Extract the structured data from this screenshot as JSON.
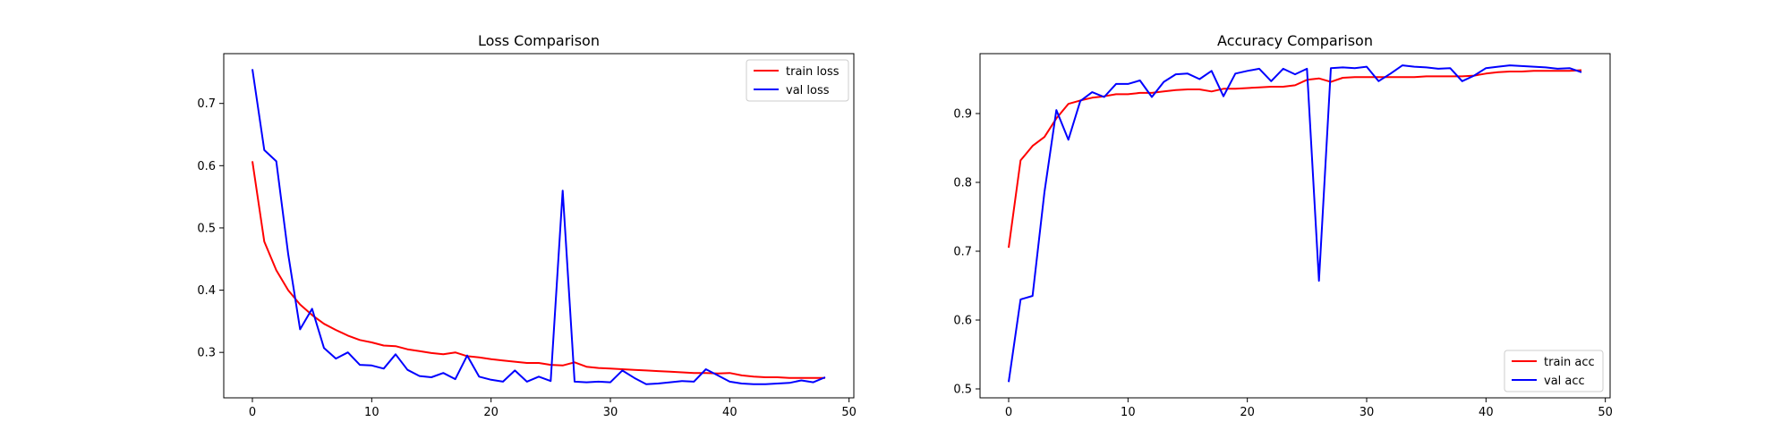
{
  "chart_data": [
    {
      "type": "line",
      "title": "Loss Comparison",
      "xlabel": "",
      "ylabel": "",
      "xlim": [
        -2.4,
        50.4
      ],
      "ylim": [
        0.227,
        0.78
      ],
      "xticks": [
        0,
        10,
        20,
        30,
        40,
        50
      ],
      "yticks": [
        0.3,
        0.4,
        0.5,
        0.6,
        0.7
      ],
      "xtick_labels": [
        "0",
        "10",
        "20",
        "30",
        "40",
        "50"
      ],
      "ytick_labels": [
        "0.3",
        "0.4",
        "0.5",
        "0.6",
        "0.7"
      ],
      "grid": false,
      "legend_position": "top-right",
      "x": [
        0,
        1,
        2,
        3,
        4,
        5,
        6,
        7,
        8,
        9,
        10,
        11,
        12,
        13,
        14,
        15,
        16,
        17,
        18,
        19,
        20,
        21,
        22,
        23,
        24,
        25,
        26,
        27,
        28,
        29,
        30,
        31,
        32,
        33,
        34,
        35,
        36,
        37,
        38,
        39,
        40,
        41,
        42,
        43,
        44,
        45,
        46,
        47,
        48
      ],
      "series": [
        {
          "name": "train loss",
          "color": "#ff0000",
          "values": [
            0.607,
            0.478,
            0.432,
            0.4,
            0.377,
            0.36,
            0.346,
            0.336,
            0.327,
            0.32,
            0.316,
            0.311,
            0.31,
            0.305,
            0.302,
            0.299,
            0.297,
            0.3,
            0.294,
            0.292,
            0.289,
            0.287,
            0.285,
            0.283,
            0.283,
            0.28,
            0.279,
            0.284,
            0.277,
            0.275,
            0.274,
            0.273,
            0.272,
            0.271,
            0.27,
            0.269,
            0.268,
            0.267,
            0.267,
            0.266,
            0.267,
            0.263,
            0.261,
            0.26,
            0.26,
            0.259,
            0.259,
            0.259,
            0.259
          ]
        },
        {
          "name": "val loss",
          "color": "#0000ff",
          "values": [
            0.755,
            0.625,
            0.607,
            0.458,
            0.337,
            0.37,
            0.307,
            0.29,
            0.3,
            0.28,
            0.279,
            0.274,
            0.297,
            0.272,
            0.262,
            0.26,
            0.267,
            0.257,
            0.295,
            0.261,
            0.256,
            0.253,
            0.271,
            0.253,
            0.261,
            0.254,
            0.56,
            0.253,
            0.252,
            0.253,
            0.252,
            0.271,
            0.259,
            0.249,
            0.25,
            0.252,
            0.254,
            0.253,
            0.273,
            0.263,
            0.253,
            0.25,
            0.249,
            0.249,
            0.25,
            0.251,
            0.255,
            0.252,
            0.26
          ]
        }
      ]
    },
    {
      "type": "line",
      "title": "Accuracy Comparison",
      "xlabel": "",
      "ylabel": "",
      "xlim": [
        -2.4,
        50.4
      ],
      "ylim": [
        0.487,
        0.987
      ],
      "xticks": [
        0,
        10,
        20,
        30,
        40,
        50
      ],
      "yticks": [
        0.5,
        0.6,
        0.7,
        0.8,
        0.9
      ],
      "xtick_labels": [
        "0",
        "10",
        "20",
        "30",
        "40",
        "50"
      ],
      "ytick_labels": [
        "0.5",
        "0.6",
        "0.7",
        "0.8",
        "0.9"
      ],
      "grid": false,
      "legend_position": "bottom-right",
      "x": [
        0,
        1,
        2,
        3,
        4,
        5,
        6,
        7,
        8,
        9,
        10,
        11,
        12,
        13,
        14,
        15,
        16,
        17,
        18,
        19,
        20,
        21,
        22,
        23,
        24,
        25,
        26,
        27,
        28,
        29,
        30,
        31,
        32,
        33,
        34,
        35,
        36,
        37,
        38,
        39,
        40,
        41,
        42,
        43,
        44,
        45,
        46,
        47,
        48
      ],
      "series": [
        {
          "name": "train acc",
          "color": "#ff0000",
          "values": [
            0.705,
            0.832,
            0.853,
            0.866,
            0.893,
            0.914,
            0.919,
            0.923,
            0.925,
            0.928,
            0.928,
            0.93,
            0.93,
            0.932,
            0.934,
            0.935,
            0.935,
            0.932,
            0.936,
            0.936,
            0.937,
            0.938,
            0.939,
            0.939,
            0.941,
            0.949,
            0.951,
            0.946,
            0.952,
            0.953,
            0.953,
            0.953,
            0.953,
            0.953,
            0.953,
            0.954,
            0.954,
            0.954,
            0.954,
            0.955,
            0.958,
            0.96,
            0.961,
            0.961,
            0.962,
            0.962,
            0.962,
            0.962,
            0.963
          ]
        },
        {
          "name": "val acc",
          "color": "#0000ff",
          "values": [
            0.51,
            0.63,
            0.635,
            0.786,
            0.905,
            0.862,
            0.918,
            0.931,
            0.924,
            0.943,
            0.943,
            0.948,
            0.924,
            0.946,
            0.957,
            0.958,
            0.95,
            0.962,
            0.925,
            0.958,
            0.962,
            0.965,
            0.947,
            0.965,
            0.957,
            0.965,
            0.657,
            0.966,
            0.967,
            0.966,
            0.968,
            0.947,
            0.958,
            0.97,
            0.968,
            0.967,
            0.965,
            0.966,
            0.947,
            0.955,
            0.966,
            0.968,
            0.97,
            0.969,
            0.968,
            0.967,
            0.965,
            0.966,
            0.96
          ]
        }
      ]
    }
  ]
}
